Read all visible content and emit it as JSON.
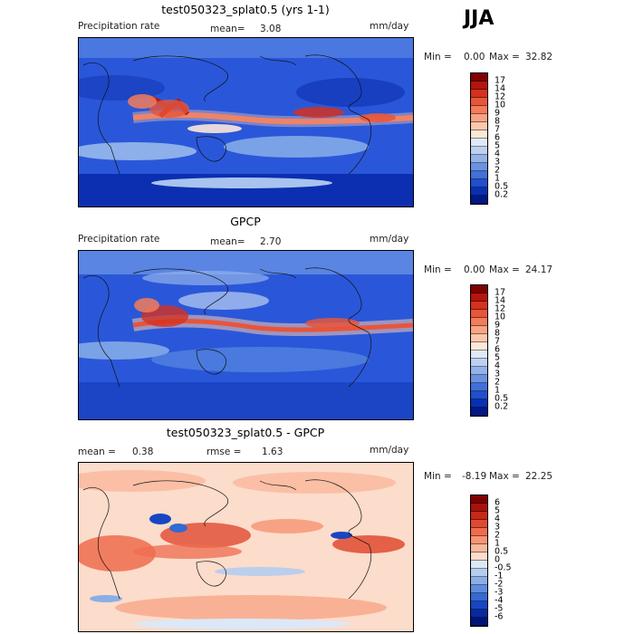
{
  "season": "JJA",
  "panels": [
    {
      "title": "test050323_splat0.5 (yrs 1-1)",
      "left_label": "Precipitation rate",
      "mean_label": "mean=",
      "mean_value": "3.08",
      "units": "mm/day",
      "min_label": "Min =",
      "min_value": "0.00",
      "max_label": "Max =",
      "max_value": "32.82",
      "levels": [
        "17",
        "14",
        "12",
        "10",
        "9",
        "8",
        "7",
        "6",
        "5",
        "4",
        "3",
        "2",
        "1",
        "0.5",
        "0.2"
      ],
      "colors": [
        "#7f0000",
        "#b4150c",
        "#d4311f",
        "#e8553a",
        "#f27c5b",
        "#f8a482",
        "#fbc8ad",
        "#fde7d8",
        "#dfe9f7",
        "#bcd0f1",
        "#93b2ea",
        "#6b92e1",
        "#4170d8",
        "#1f4fce",
        "#0a30b0",
        "#00188a"
      ]
    },
    {
      "title": "GPCP",
      "left_label": "Precipitation rate",
      "mean_label": "mean=",
      "mean_value": "2.70",
      "units": "mm/day",
      "min_label": "Min =",
      "min_value": "0.00",
      "max_label": "Max =",
      "max_value": "24.17",
      "levels": [
        "17",
        "14",
        "12",
        "10",
        "9",
        "8",
        "7",
        "6",
        "5",
        "4",
        "3",
        "2",
        "1",
        "0.5",
        "0.2"
      ],
      "colors": [
        "#7f0000",
        "#b4150c",
        "#d4311f",
        "#e8553a",
        "#f27c5b",
        "#f8a482",
        "#fbc8ad",
        "#fde7d8",
        "#dfe9f7",
        "#bcd0f1",
        "#93b2ea",
        "#6b92e1",
        "#4170d8",
        "#1f4fce",
        "#0a30b0",
        "#00188a"
      ]
    },
    {
      "title": "test050323_splat0.5 - GPCP",
      "left_label": "mean =",
      "mean_label": "rmse =",
      "mean_value": "1.63",
      "left_value": "0.38",
      "units": "mm/day",
      "min_label": "Min =",
      "min_value": "-8.19",
      "max_label": "Max =",
      "max_value": "22.25",
      "levels": [
        "6",
        "5",
        "4",
        "3",
        "2",
        "1",
        "0.5",
        "0",
        "-0.5",
        "-1",
        "-2",
        "-3",
        "-4",
        "-5",
        "-6"
      ],
      "colors": [
        "#7f0000",
        "#a8120b",
        "#c8281a",
        "#df4a30",
        "#ee6c4d",
        "#f69473",
        "#fab89c",
        "#fcdccb",
        "#dce8f7",
        "#b4ccef",
        "#8aaee7",
        "#5f8cde",
        "#3569d3",
        "#1846c2",
        "#0829a0",
        "#001478"
      ]
    }
  ]
}
